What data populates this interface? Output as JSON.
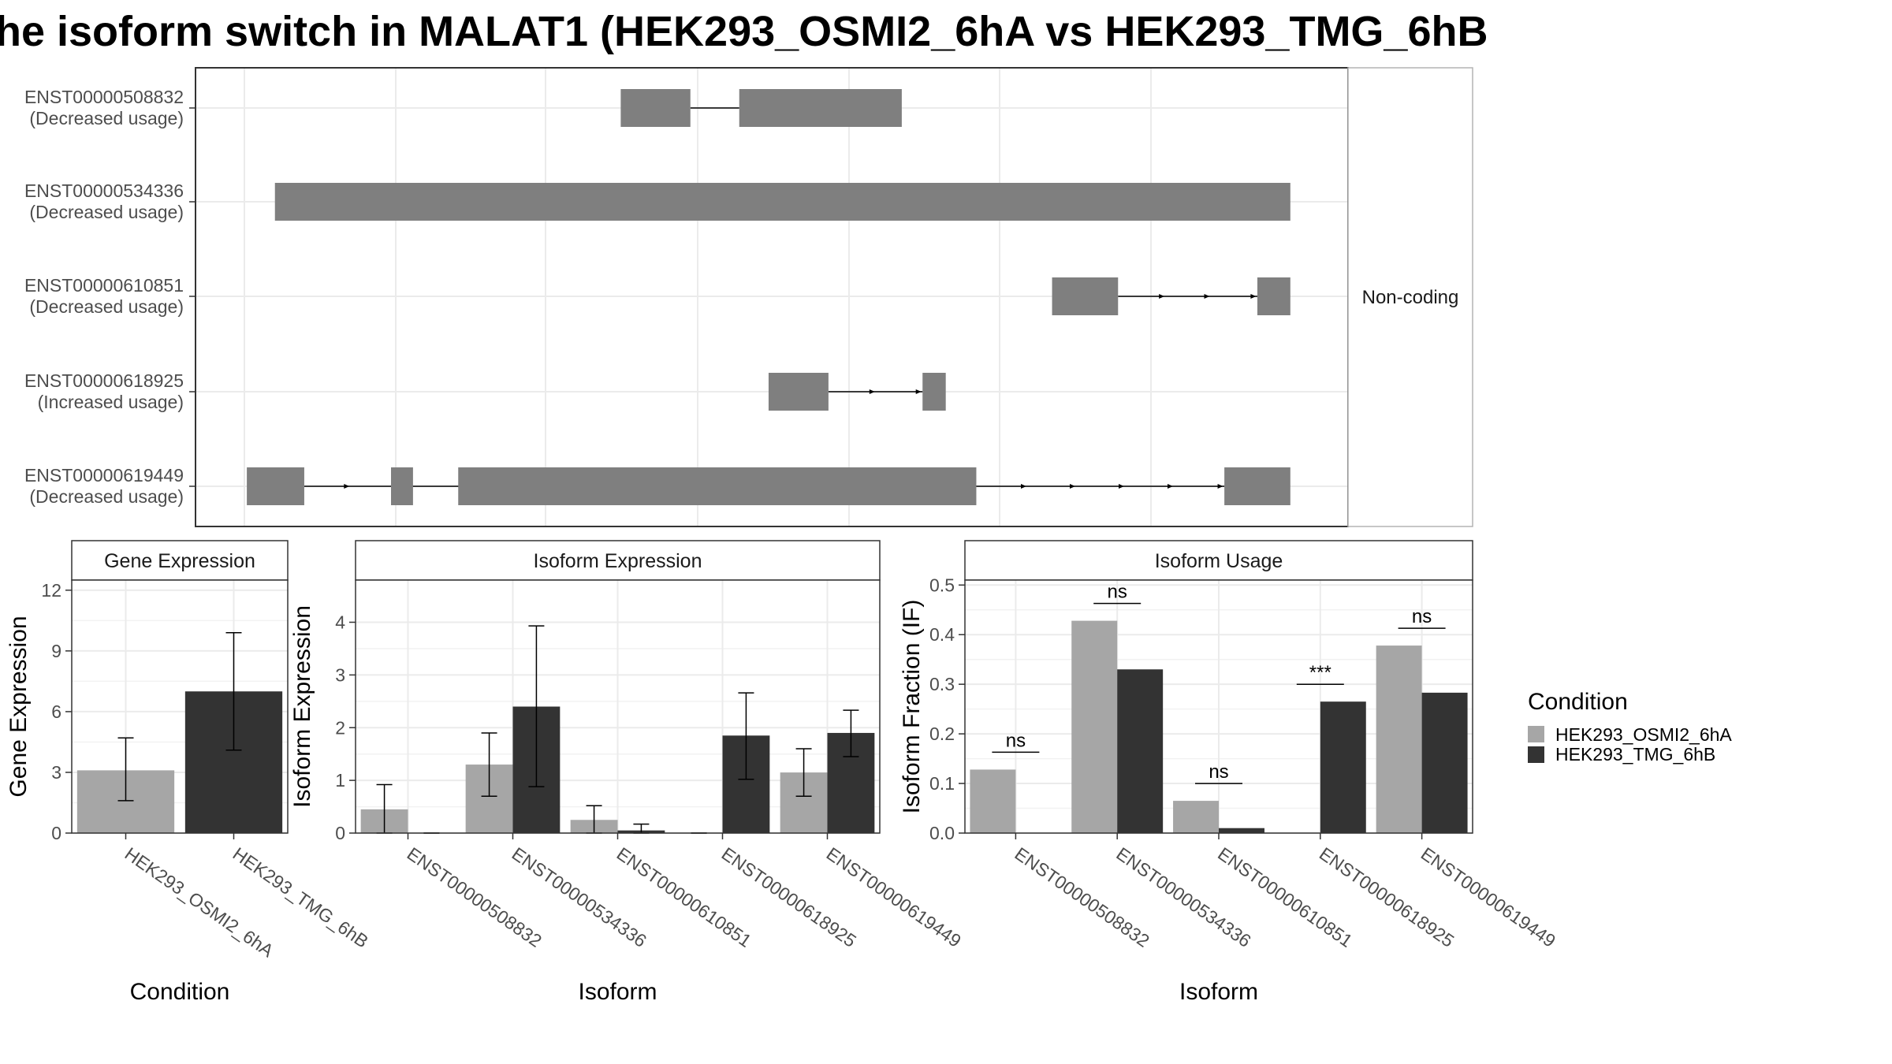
{
  "title": "he isoform switch in MALAT1 (HEK293_OSMI2_6hA vs HEK293_TMG_6hB",
  "colors": {
    "exon": "#7f7f7f",
    "cond_a": "#a6a6a6",
    "cond_b": "#333333",
    "grid": "#ebebeb",
    "strip_bg": "#ffffff",
    "panel_border": "#333333"
  },
  "chart_data": [
    {
      "type": "gene-structure",
      "facet_label": "Non-coding",
      "transcripts": [
        {
          "id": "ENST00000508832",
          "usage": "(Decreased usage)",
          "exons": [
            [
              508,
              565
            ],
            [
              605,
              738
            ]
          ],
          "arrows": []
        },
        {
          "id": "ENST00000534336",
          "usage": "(Decreased usage)",
          "exons": [
            [
              225,
              1056
            ]
          ],
          "arrows": []
        },
        {
          "id": "ENST00000610851",
          "usage": "(Decreased usage)",
          "exons": [
            [
              861,
              915
            ],
            [
              1029,
              1056
            ]
          ],
          "arrows": [
            953,
            990,
            1028
          ]
        },
        {
          "id": "ENST00000618925",
          "usage": "(Increased usage)",
          "exons": [
            [
              629,
              678
            ],
            [
              755,
              774
            ]
          ],
          "arrows": [
            716,
            754
          ]
        },
        {
          "id": "ENST00000619449",
          "usage": "(Decreased usage)",
          "exons": [
            [
              202,
              249
            ],
            [
              320,
              338
            ],
            [
              375,
              799
            ],
            [
              1002,
              1056
            ]
          ],
          "arrows": [
            286,
            840,
            880,
            920,
            960,
            1001
          ]
        }
      ]
    },
    {
      "type": "bar",
      "strip": "Gene Expression",
      "xlabel": "Condition",
      "ylabel": "Gene Expression",
      "ylim": [
        0,
        12.5
      ],
      "yticks": [
        0,
        3,
        6,
        9,
        12
      ],
      "categories": [
        "HEK293_OSMI2_6hA",
        "HEK293_TMG_6hB"
      ],
      "values": [
        3.1,
        7.0
      ],
      "err_low": [
        1.6,
        4.1
      ],
      "err_high": [
        4.7,
        9.9
      ]
    },
    {
      "type": "bar",
      "strip": "Isoform Expression",
      "xlabel": "Isoform",
      "ylabel": "Isoform Expression",
      "ylim": [
        0,
        4.8
      ],
      "yticks": [
        0,
        1,
        2,
        3,
        4
      ],
      "categories": [
        "ENST00000508832",
        "ENST00000534336",
        "ENST00000610851",
        "ENST00000618925",
        "ENST00000619449"
      ],
      "series": [
        {
          "name": "HEK293_OSMI2_6hA",
          "values": [
            0.45,
            1.3,
            0.25,
            0.0,
            1.15
          ],
          "err_low": [
            0.0,
            0.7,
            0.0,
            0.0,
            0.7
          ],
          "err_high": [
            0.92,
            1.9,
            0.52,
            0.0,
            1.6
          ]
        },
        {
          "name": "HEK293_TMG_6hB",
          "values": [
            0.0,
            2.4,
            0.05,
            1.85,
            1.9
          ],
          "err_low": [
            0.0,
            0.88,
            0.0,
            1.02,
            1.45
          ],
          "err_high": [
            0.0,
            3.93,
            0.17,
            2.66,
            2.33
          ]
        }
      ]
    },
    {
      "type": "bar",
      "strip": "Isoform Usage",
      "xlabel": "Isoform",
      "ylabel": "Isoform Fraction (IF)",
      "ylim": [
        0,
        0.51
      ],
      "yticks": [
        0.0,
        0.1,
        0.2,
        0.3,
        0.4,
        0.5
      ],
      "ytick_labels": [
        "0.0",
        "0.1",
        "0.2",
        "0.3",
        "0.4",
        "0.5"
      ],
      "categories": [
        "ENST00000508832",
        "ENST00000534336",
        "ENST00000610851",
        "ENST00000618925",
        "ENST00000619449"
      ],
      "series": [
        {
          "name": "HEK293_OSMI2_6hA",
          "values": [
            0.128,
            0.428,
            0.065,
            0.0,
            0.378
          ]
        },
        {
          "name": "HEK293_TMG_6hB",
          "values": [
            0.0,
            0.33,
            0.01,
            0.265,
            0.283
          ]
        }
      ],
      "significance": [
        "ns",
        "ns",
        "ns",
        "***",
        "ns"
      ]
    }
  ],
  "legend": {
    "title": "Condition",
    "items": [
      "HEK293_OSMI2_6hA",
      "HEK293_TMG_6hB"
    ]
  }
}
